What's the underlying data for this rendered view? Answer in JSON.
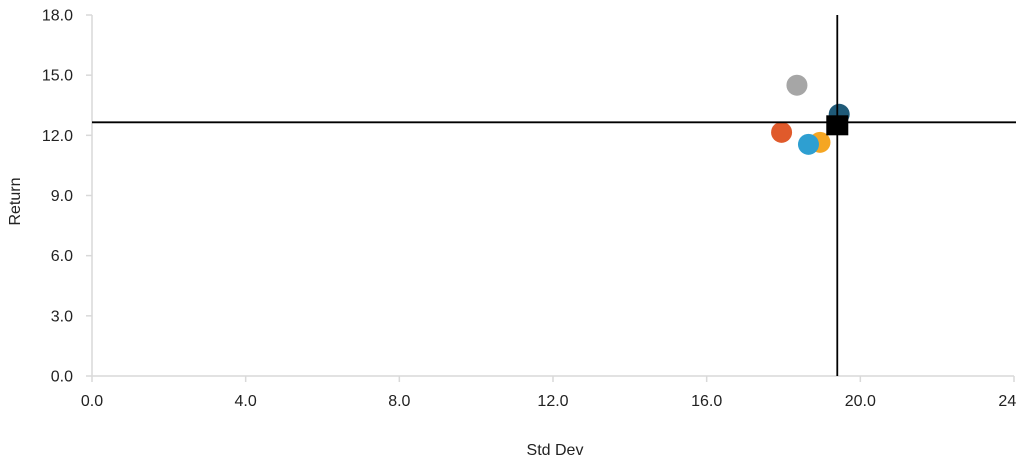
{
  "chart_data": {
    "type": "scatter",
    "xlabel": "Std Dev",
    "ylabel": "Return",
    "xlim": [
      0,
      24
    ],
    "ylim": [
      0,
      18
    ],
    "x_ticks": [
      "0.0",
      "4.0",
      "8.0",
      "12.0",
      "16.0",
      "20.0",
      "24.0"
    ],
    "y_ticks": [
      "0.0",
      "3.0",
      "6.0",
      "9.0",
      "12.0",
      "15.0",
      "18.0"
    ],
    "grid": false,
    "legend": "none",
    "reference_lines": {
      "x": 19.4,
      "y": 12.65
    },
    "points": [
      {
        "x": 18.35,
        "y": 14.5,
        "color": "#a6a6a6",
        "shape": "circle"
      },
      {
        "x": 19.45,
        "y": 13.05,
        "color": "#1f5a78",
        "shape": "circle"
      },
      {
        "x": 17.95,
        "y": 12.15,
        "color": "#e05a2b",
        "shape": "circle"
      },
      {
        "x": 18.95,
        "y": 11.65,
        "color": "#f5a623",
        "shape": "circle"
      },
      {
        "x": 18.65,
        "y": 11.55,
        "color": "#2e9fd1",
        "shape": "circle"
      },
      {
        "x": 19.4,
        "y": 12.5,
        "color": "#000000",
        "shape": "square"
      }
    ]
  }
}
